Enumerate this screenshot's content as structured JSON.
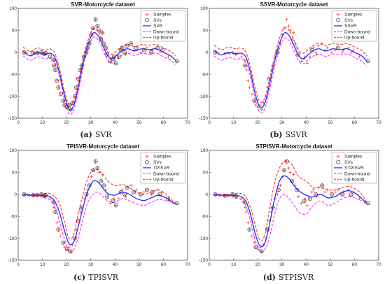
{
  "colors": {
    "samples": "#ff3030",
    "svs": "#222222",
    "fit": "#1a2eff",
    "down_bound": "#ff33ff",
    "up_bound": "#ff3333"
  },
  "captions": [
    {
      "tag": "(a)",
      "name": "SVR"
    },
    {
      "tag": "(b)",
      "name": "SSVR"
    },
    {
      "tag": "(c)",
      "name": "TPISVR"
    },
    {
      "tag": "(d)",
      "name": "STPISVR"
    }
  ],
  "chart_data": [
    {
      "type": "scatter",
      "title": "SVR-Motorcycle dataset",
      "xlim": [
        0,
        70
      ],
      "ylim": [
        -150,
        100
      ],
      "xticks": [
        0,
        10,
        20,
        30,
        40,
        50,
        60,
        70
      ],
      "yticks": [
        -150,
        -100,
        -50,
        0,
        50,
        100
      ],
      "legend": [
        "Samples",
        "SVs",
        "SVR",
        "Down-bound",
        "Up-bound"
      ],
      "legend_position": "top-right",
      "fit_offset_down": -10,
      "fit_offset_up": 10,
      "fit_x": [
        2,
        5,
        8,
        11,
        13,
        15,
        17,
        19,
        21,
        23,
        25,
        27,
        29,
        31,
        33,
        35,
        37,
        39,
        42,
        45,
        48,
        51,
        54,
        57,
        60,
        63,
        65
      ],
      "fit_y": [
        2,
        -8,
        0,
        -5,
        -2,
        -10,
        -45,
        -95,
        -130,
        -120,
        -75,
        -20,
        20,
        44,
        38,
        15,
        -8,
        -14,
        0,
        8,
        3,
        8,
        6,
        8,
        0,
        -8,
        -18
      ],
      "samples_x": [
        2.4,
        3.6,
        6.2,
        6.6,
        7.8,
        8.2,
        9.6,
        10,
        10.8,
        11,
        11.4,
        13.2,
        14.6,
        14.8,
        15.4,
        16,
        16.6,
        17.6,
        18.6,
        19.2,
        20.2,
        21,
        21.6,
        22.4,
        23.4,
        24,
        24.8,
        25.6,
        26.2,
        27.2,
        28.2,
        28.6,
        29.4,
        30.2,
        31,
        32,
        32.8,
        33.4,
        34.2,
        34.8,
        35.4,
        36.2,
        36.8,
        38,
        39.2,
        39.6,
        40.4,
        41.6,
        42.4,
        43,
        44,
        44.4,
        45,
        46.6,
        47.8,
        48.8,
        50.6,
        52,
        53.2,
        55,
        55.4,
        57.6,
        58.6,
        59.6,
        62,
        65.6
      ],
      "samples_y": [
        0,
        -1,
        -2,
        -3,
        -2,
        -3,
        0,
        -2,
        -3,
        -5,
        -2,
        -10,
        -18,
        -30,
        -40,
        -65,
        -80,
        -95,
        -110,
        -120,
        -125,
        -120,
        -130,
        -115,
        -100,
        -80,
        -60,
        -40,
        -30,
        -10,
        0,
        10,
        20,
        40,
        55,
        75,
        60,
        50,
        30,
        45,
        20,
        10,
        -5,
        -20,
        -15,
        -10,
        -25,
        -10,
        5,
        10,
        0,
        -5,
        15,
        20,
        5,
        10,
        0,
        5,
        10,
        0,
        5,
        10,
        0,
        5,
        -10,
        -20
      ],
      "sv_idx": [
        0,
        2,
        4,
        6,
        8,
        10,
        11,
        12,
        13,
        14,
        15,
        16,
        17,
        18,
        19,
        20,
        21,
        22,
        23,
        24,
        25,
        26,
        27,
        28,
        29,
        30,
        31,
        32,
        33,
        34,
        35,
        36,
        37,
        38,
        39,
        40,
        41,
        42,
        43,
        44,
        45,
        46,
        47,
        48,
        49,
        50,
        52,
        53,
        55,
        57,
        59,
        61,
        63,
        65
      ]
    },
    {
      "type": "scatter",
      "title": "SSVR-Motorcycle dataset",
      "xlim": [
        0,
        70
      ],
      "ylim": [
        -150,
        100
      ],
      "xticks": [
        0,
        10,
        20,
        30,
        40,
        50,
        60,
        70
      ],
      "yticks": [
        -150,
        -100,
        -50,
        0,
        50,
        100
      ],
      "legend": [
        "Samples",
        "SVs",
        "SSVR",
        "Down-bound",
        "Up-bound"
      ],
      "legend_position": "top-right",
      "fit_offset_down": -12,
      "fit_offset_up": 12,
      "fit_x": [
        2,
        5,
        8,
        11,
        13,
        15,
        17,
        19,
        21,
        23,
        25,
        27,
        29,
        31,
        33,
        35,
        37,
        39,
        42,
        45,
        48,
        51,
        54,
        57,
        60,
        63,
        65
      ],
      "fit_y": [
        4,
        -6,
        0,
        -4,
        -2,
        -10,
        -45,
        -95,
        -125,
        -115,
        -70,
        -20,
        20,
        44,
        38,
        15,
        -8,
        -14,
        0,
        8,
        3,
        8,
        6,
        8,
        0,
        -8,
        -20
      ],
      "samples_x": [
        2.4,
        3.6,
        6.2,
        6.6,
        7.8,
        8.2,
        9.6,
        10,
        10.8,
        11,
        11.4,
        13.2,
        14.6,
        14.8,
        15.4,
        16,
        16.6,
        17.6,
        18.6,
        19.2,
        20.2,
        21,
        21.6,
        22.4,
        23.4,
        24,
        24.8,
        25.6,
        26.2,
        27.2,
        28.2,
        28.6,
        29.4,
        30.2,
        31,
        32,
        32.8,
        33.4,
        34.2,
        34.8,
        35.4,
        36.2,
        36.8,
        38,
        39.2,
        39.6,
        40.4,
        41.6,
        42.4,
        43,
        44,
        44.4,
        45,
        46.6,
        47.8,
        48.8,
        50.6,
        52,
        53.2,
        55,
        55.4,
        57.6,
        58.6,
        59.6,
        62,
        65.6
      ],
      "samples_y": [
        0,
        -1,
        -2,
        -3,
        -2,
        -3,
        0,
        -2,
        -3,
        -5,
        -2,
        -10,
        -18,
        -30,
        -40,
        -65,
        -80,
        -95,
        -110,
        -120,
        -125,
        -120,
        -130,
        -115,
        -100,
        -80,
        -60,
        -40,
        -30,
        -10,
        0,
        10,
        20,
        40,
        55,
        75,
        60,
        50,
        30,
        45,
        20,
        10,
        -5,
        -20,
        -15,
        -10,
        -25,
        -10,
        5,
        10,
        0,
        -5,
        15,
        20,
        5,
        10,
        0,
        5,
        10,
        0,
        5,
        10,
        0,
        5,
        -10,
        -20
      ],
      "sv_idx": [
        0,
        13,
        18,
        26,
        30,
        42,
        48,
        58,
        65
      ]
    },
    {
      "type": "scatter",
      "title": "TPISVR-Motorcycle dataset",
      "xlim": [
        0,
        70
      ],
      "ylim": [
        -150,
        100
      ],
      "xticks": [
        0,
        10,
        20,
        30,
        40,
        50,
        60,
        70
      ],
      "yticks": [
        -150,
        -100,
        -50,
        0,
        50,
        100
      ],
      "legend": [
        "Samples",
        "SVs",
        "TPISVR",
        "Down-bound",
        "Up-bound"
      ],
      "legend_position": "top-right",
      "fit_x": [
        2,
        5,
        8,
        11,
        13,
        15,
        17,
        19,
        21,
        23,
        25,
        27,
        29,
        31,
        33,
        35,
        37,
        40,
        43,
        46,
        49,
        52,
        55,
        58,
        61,
        63,
        65
      ],
      "fit_y": [
        0,
        -2,
        -2,
        -3,
        -5,
        -15,
        -40,
        -80,
        -112,
        -108,
        -70,
        -25,
        10,
        30,
        28,
        14,
        2,
        -2,
        5,
        0,
        -10,
        -14,
        -8,
        -2,
        -8,
        -15,
        -22
      ],
      "down_y": [
        -2,
        -4,
        -5,
        -8,
        -12,
        -25,
        -60,
        -100,
        -130,
        -125,
        -95,
        -50,
        -15,
        0,
        5,
        -5,
        -15,
        -18,
        -10,
        -15,
        -22,
        -25,
        -18,
        -12,
        -15,
        -18,
        -22
      ],
      "up_y": [
        0,
        0,
        0,
        2,
        2,
        -5,
        -20,
        -60,
        -100,
        -90,
        -40,
        5,
        40,
        55,
        55,
        45,
        30,
        20,
        22,
        15,
        5,
        0,
        5,
        10,
        0,
        -10,
        -22
      ],
      "samples_x": [
        2.4,
        3.6,
        6.2,
        6.6,
        7.8,
        8.2,
        9.6,
        10,
        10.8,
        11,
        11.4,
        13.2,
        14.6,
        14.8,
        15.4,
        16,
        16.6,
        17.6,
        18.6,
        19.2,
        20.2,
        21,
        21.6,
        22.4,
        23.4,
        24,
        24.8,
        25.6,
        26.2,
        27.2,
        28.2,
        28.6,
        29.4,
        30.2,
        31,
        32,
        32.8,
        33.4,
        34.2,
        34.8,
        35.4,
        36.2,
        36.8,
        38,
        39.2,
        39.6,
        40.4,
        41.6,
        42.4,
        43,
        44,
        44.4,
        45,
        46.6,
        47.8,
        48.8,
        50.6,
        52,
        53.2,
        55,
        55.4,
        57.6,
        58.6,
        59.6,
        62,
        65.6
      ],
      "samples_y": [
        0,
        -1,
        -2,
        -3,
        -2,
        -3,
        0,
        -2,
        -3,
        -5,
        -2,
        -10,
        -18,
        -30,
        -40,
        -65,
        -80,
        -95,
        -110,
        -120,
        -125,
        -120,
        -130,
        -115,
        -100,
        -80,
        -60,
        -40,
        -30,
        -10,
        0,
        10,
        20,
        40,
        55,
        75,
        60,
        50,
        30,
        45,
        20,
        10,
        -5,
        -20,
        -15,
        -10,
        -25,
        -10,
        5,
        10,
        0,
        -5,
        15,
        20,
        5,
        10,
        0,
        5,
        10,
        0,
        5,
        10,
        0,
        5,
        -10,
        -20
      ],
      "sv_idx": [
        0,
        2,
        4,
        6,
        8,
        10,
        12,
        14,
        16,
        18,
        20,
        22,
        24,
        26,
        28,
        30,
        32,
        34,
        35,
        36,
        38,
        40,
        42,
        44,
        46,
        48,
        50,
        52,
        54,
        56,
        58,
        60,
        62,
        64,
        65
      ]
    },
    {
      "type": "scatter",
      "title": "STPISVR-Motorcycle dataset",
      "xlim": [
        0,
        70
      ],
      "ylim": [
        -150,
        100
      ],
      "xticks": [
        0,
        10,
        20,
        30,
        40,
        50,
        60,
        70
      ],
      "yticks": [
        -150,
        -100,
        -50,
        0,
        50,
        100
      ],
      "legend": [
        "Samples",
        "SVs",
        "STPISVR",
        "Down-bound",
        "Up-bound"
      ],
      "legend_position": "top-right",
      "fit_x": [
        2,
        5,
        8,
        11,
        13,
        15,
        17,
        19,
        21,
        23,
        25,
        27,
        29,
        31,
        33,
        35,
        37,
        40,
        43,
        46,
        49,
        52,
        55,
        58,
        61,
        63,
        65
      ],
      "fit_y": [
        0,
        -2,
        -2,
        -3,
        -5,
        -15,
        -45,
        -90,
        -118,
        -110,
        -65,
        -10,
        30,
        42,
        35,
        20,
        8,
        -2,
        -6,
        0,
        -8,
        -5,
        5,
        8,
        0,
        -10,
        -20
      ],
      "down_y": [
        -2,
        -4,
        -5,
        -8,
        -12,
        -25,
        -60,
        -105,
        -130,
        -125,
        -95,
        -45,
        -10,
        0,
        -10,
        -25,
        -40,
        -45,
        -25,
        -15,
        -25,
        -20,
        -10,
        -5,
        -10,
        -15,
        -22
      ],
      "up_y": [
        0,
        0,
        0,
        2,
        2,
        -5,
        -30,
        -70,
        -105,
        -90,
        -30,
        25,
        60,
        75,
        75,
        60,
        40,
        30,
        15,
        15,
        10,
        10,
        15,
        18,
        10,
        0,
        -18
      ],
      "samples_x": [
        2.4,
        3.6,
        6.2,
        6.6,
        7.8,
        8.2,
        9.6,
        10,
        10.8,
        11,
        11.4,
        13.2,
        14.6,
        14.8,
        15.4,
        16,
        16.6,
        17.6,
        18.6,
        19.2,
        20.2,
        21,
        21.6,
        22.4,
        23.4,
        24,
        24.8,
        25.6,
        26.2,
        27.2,
        28.2,
        28.6,
        29.4,
        30.2,
        31,
        32,
        32.8,
        33.4,
        34.2,
        34.8,
        35.4,
        36.2,
        36.8,
        38,
        39.2,
        39.6,
        40.4,
        41.6,
        42.4,
        43,
        44,
        44.4,
        45,
        46.6,
        47.8,
        48.8,
        50.6,
        52,
        53.2,
        55,
        55.4,
        57.6,
        58.6,
        59.6,
        62,
        65.6
      ],
      "samples_y": [
        0,
        -1,
        -2,
        -3,
        -2,
        -3,
        0,
        -2,
        -3,
        -5,
        -2,
        -10,
        -18,
        -30,
        -40,
        -65,
        -80,
        -95,
        -110,
        -120,
        -125,
        -120,
        -130,
        -115,
        -100,
        -80,
        -60,
        -40,
        -30,
        -10,
        0,
        10,
        20,
        40,
        55,
        75,
        60,
        50,
        30,
        45,
        20,
        10,
        -5,
        -20,
        -15,
        -10,
        -25,
        -10,
        5,
        10,
        0,
        -5,
        15,
        20,
        5,
        10,
        0,
        5,
        10,
        0,
        5,
        10,
        0,
        5,
        -10,
        -20
      ],
      "sv_idx": [
        0,
        3,
        6,
        9,
        12,
        16,
        19,
        22,
        25,
        28,
        31,
        34,
        35,
        38,
        41,
        44,
        47,
        50,
        53,
        56,
        59,
        62,
        65
      ]
    }
  ]
}
